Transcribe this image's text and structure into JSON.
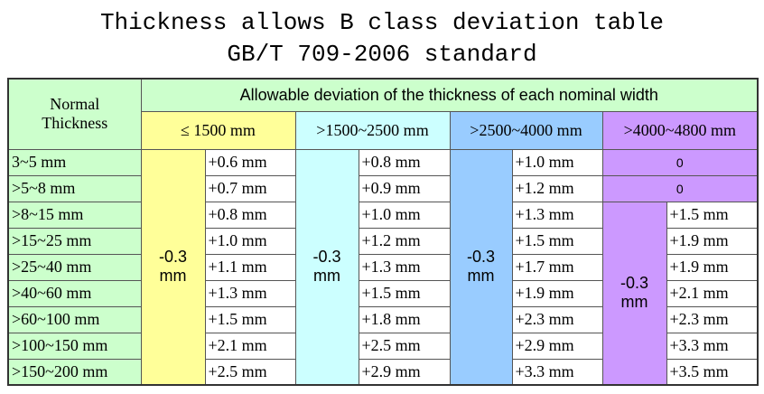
{
  "title": [
    "Thickness allows B class deviation table",
    "GB/T 709-2006 standard"
  ],
  "table": {
    "corner": "Normal Thickness",
    "span_header": "Allowable deviation of the thickness of each nominal width",
    "row_labels": [
      "3~5 mm",
      ">5~8 mm",
      ">8~15 mm",
      ">15~25 mm",
      ">25~40 mm",
      ">40~60 mm",
      ">60~100 mm",
      ">100~150 mm",
      ">150~200 mm"
    ],
    "columns": [
      {
        "header": "≤ 1500 mm",
        "merged": "-0.3 mm",
        "values": [
          "+0.6 mm",
          "+0.7 mm",
          "+0.8 mm",
          "+1.0 mm",
          "+1.1 mm",
          "+1.3 mm",
          "+1.5 mm",
          "+2.1 mm",
          "+2.5 mm"
        ]
      },
      {
        "header": ">1500~2500 mm",
        "merged": "-0.3 mm",
        "values": [
          "+0.8 mm",
          "+0.9 mm",
          "+1.0 mm",
          "+1.2 mm",
          "+1.3 mm",
          "+1.5 mm",
          "+1.8 mm",
          "+2.5 mm",
          "+2.9 mm"
        ]
      },
      {
        "header": ">2500~4000 mm",
        "merged": "-0.3 mm",
        "values": [
          "+1.0 mm",
          "+1.2 mm",
          "+1.3 mm",
          "+1.5 mm",
          "+1.7 mm",
          "+1.9 mm",
          "+2.3 mm",
          "+2.9 mm",
          "+3.3 mm"
        ]
      },
      {
        "header": ">4000~4800 mm",
        "full_width": [
          "0",
          "0"
        ],
        "merged": "-0.3 mm",
        "values": [
          "+1.5 mm",
          "+1.9 mm",
          "+1.9 mm",
          "+2.1 mm",
          "+2.3 mm",
          "+3.3 mm",
          "+3.5 mm"
        ]
      }
    ]
  }
}
